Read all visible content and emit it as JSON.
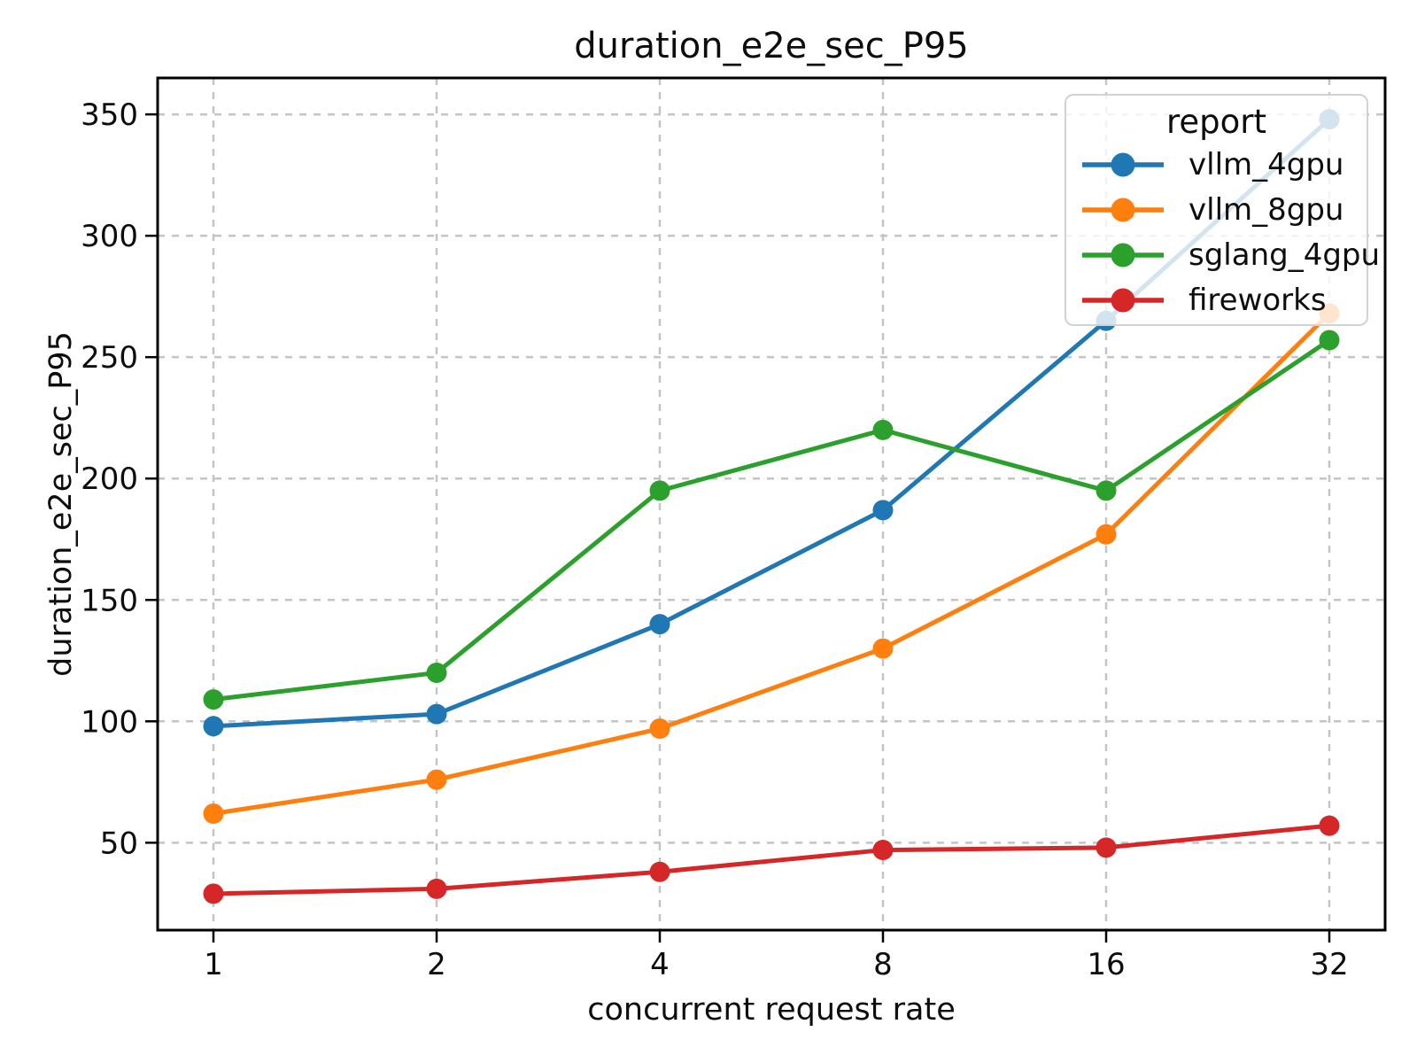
{
  "chart_data": {
    "type": "line",
    "title": "duration_e2e_sec_P95",
    "xlabel": "concurrent request rate",
    "ylabel": "duration_e2e_sec_P95",
    "x_scale": "log2",
    "x": [
      1,
      2,
      4,
      8,
      16,
      32
    ],
    "xticks": [
      "1",
      "2",
      "4",
      "8",
      "16",
      "32"
    ],
    "yticks": [
      50,
      100,
      150,
      200,
      250,
      300,
      350
    ],
    "xlim_log2": [
      -0.25,
      5.25
    ],
    "ylim": [
      14,
      365
    ],
    "grid": "dashed",
    "legend": {
      "title": "report",
      "position": "upper right"
    },
    "series": [
      {
        "name": "vllm_4gpu",
        "color": "#1f77b4",
        "values": [
          98,
          103,
          140,
          187,
          265,
          348
        ]
      },
      {
        "name": "vllm_8gpu",
        "color": "#ff7f0e",
        "values": [
          62,
          76,
          97,
          130,
          177,
          268
        ]
      },
      {
        "name": "sglang_4gpu",
        "color": "#2ca02c",
        "values": [
          109,
          120,
          195,
          220,
          195,
          257
        ]
      },
      {
        "name": "fireworks",
        "color": "#d62728",
        "values": [
          29,
          31,
          38,
          47,
          48,
          57
        ]
      }
    ],
    "colors": {
      "grid": "#c4c4c4",
      "spine": "#000000",
      "text": "#0d0d0d",
      "legend_border": "#d2d2d2",
      "background": "#ffffff"
    }
  }
}
